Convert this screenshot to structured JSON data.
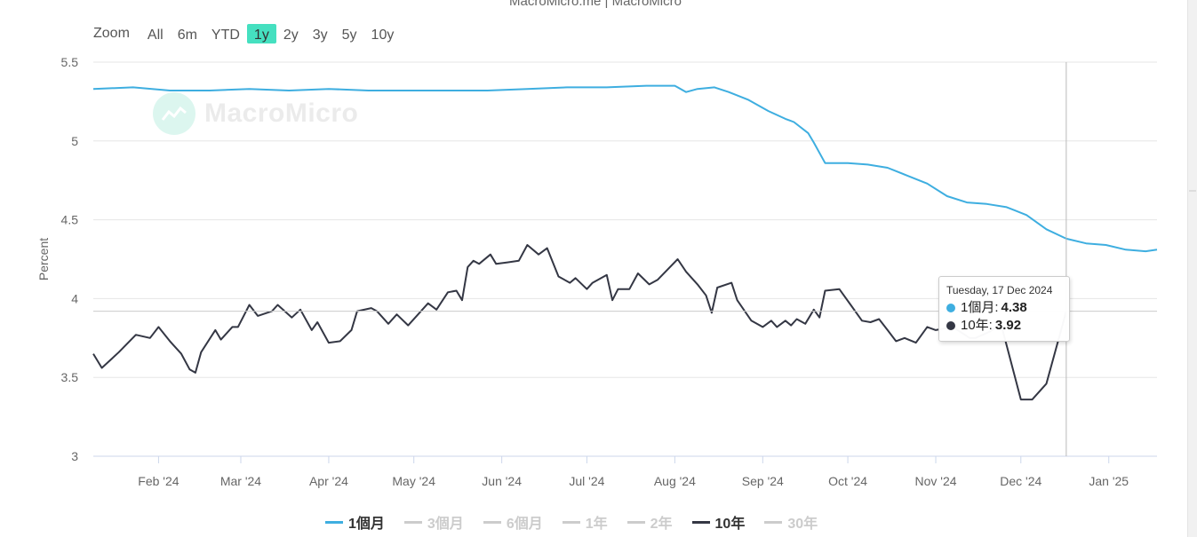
{
  "credit": "MacroMicro.me | MacroMicro",
  "zoom": {
    "label": "Zoom",
    "buttons": [
      "All",
      "6m",
      "YTD",
      "1y",
      "2y",
      "3y",
      "5y",
      "10y"
    ],
    "active": "1y"
  },
  "watermark": "MacroMicro",
  "colors": {
    "series_1m": "#3eaee0",
    "series_10y": "#343744",
    "active_button": "#45e0c0"
  },
  "tooltip": {
    "date": "Tuesday, 17 Dec 2024",
    "rows": [
      {
        "label": "1個月:",
        "value": "4.38",
        "color": "#3eaee0"
      },
      {
        "label": "10年:",
        "value": "3.92",
        "color": "#343744"
      }
    ]
  },
  "legend": [
    {
      "label": "1個月",
      "color": "#3eaee0",
      "active": true
    },
    {
      "label": "3個月",
      "color": "#cccccc",
      "active": false
    },
    {
      "label": "6個月",
      "color": "#cccccc",
      "active": false
    },
    {
      "label": "1年",
      "color": "#cccccc",
      "active": false
    },
    {
      "label": "2年",
      "color": "#cccccc",
      "active": false
    },
    {
      "label": "10年",
      "color": "#343744",
      "active": true
    },
    {
      "label": "30年",
      "color": "#cccccc",
      "active": false
    }
  ],
  "chart_data": {
    "type": "line",
    "ylabel": "Percent",
    "ylim": [
      3,
      5.5
    ],
    "yticks": [
      "3",
      "3.5",
      "4",
      "4.5",
      "5",
      "5.5"
    ],
    "xlim": [
      "2024-01-09",
      "2025-01-18"
    ],
    "xticks": [
      {
        "label": "Feb '24",
        "date": "2024-02-01"
      },
      {
        "label": "Mar '24",
        "date": "2024-03-01"
      },
      {
        "label": "Apr '24",
        "date": "2024-04-01"
      },
      {
        "label": "May '24",
        "date": "2024-05-01"
      },
      {
        "label": "Jun '24",
        "date": "2024-06-01"
      },
      {
        "label": "Jul '24",
        "date": "2024-07-01"
      },
      {
        "label": "Aug '24",
        "date": "2024-08-01"
      },
      {
        "label": "Sep '24",
        "date": "2024-09-01"
      },
      {
        "label": "Oct '24",
        "date": "2024-10-01"
      },
      {
        "label": "Nov '24",
        "date": "2024-11-01"
      },
      {
        "label": "Dec '24",
        "date": "2024-12-01"
      },
      {
        "label": "Jan '25",
        "date": "2025-01-01"
      }
    ],
    "crosshair_date": "2024-12-17",
    "series": [
      {
        "name": "1個月",
        "color": "#3eaee0",
        "points": [
          [
            "2024-01-09",
            5.33
          ],
          [
            "2024-01-23",
            5.34
          ],
          [
            "2024-02-05",
            5.32
          ],
          [
            "2024-02-19",
            5.32
          ],
          [
            "2024-03-04",
            5.33
          ],
          [
            "2024-03-18",
            5.32
          ],
          [
            "2024-04-01",
            5.33
          ],
          [
            "2024-04-15",
            5.32
          ],
          [
            "2024-04-29",
            5.32
          ],
          [
            "2024-05-13",
            5.32
          ],
          [
            "2024-05-27",
            5.32
          ],
          [
            "2024-06-10",
            5.33
          ],
          [
            "2024-06-24",
            5.34
          ],
          [
            "2024-07-08",
            5.34
          ],
          [
            "2024-07-22",
            5.35
          ],
          [
            "2024-08-01",
            5.35
          ],
          [
            "2024-08-05",
            5.31
          ],
          [
            "2024-08-09",
            5.33
          ],
          [
            "2024-08-15",
            5.34
          ],
          [
            "2024-08-20",
            5.31
          ],
          [
            "2024-08-27",
            5.26
          ],
          [
            "2024-09-03",
            5.19
          ],
          [
            "2024-09-09",
            5.14
          ],
          [
            "2024-09-12",
            5.12
          ],
          [
            "2024-09-17",
            5.05
          ],
          [
            "2024-09-19",
            4.99
          ],
          [
            "2024-09-23",
            4.86
          ],
          [
            "2024-10-01",
            4.86
          ],
          [
            "2024-10-08",
            4.85
          ],
          [
            "2024-10-15",
            4.83
          ],
          [
            "2024-10-22",
            4.78
          ],
          [
            "2024-10-29",
            4.73
          ],
          [
            "2024-11-05",
            4.65
          ],
          [
            "2024-11-12",
            4.61
          ],
          [
            "2024-11-19",
            4.6
          ],
          [
            "2024-11-26",
            4.58
          ],
          [
            "2024-12-03",
            4.53
          ],
          [
            "2024-12-10",
            4.44
          ],
          [
            "2024-12-17",
            4.38
          ],
          [
            "2024-12-24",
            4.35
          ],
          [
            "2024-12-31",
            4.34
          ],
          [
            "2025-01-07",
            4.31
          ],
          [
            "2025-01-14",
            4.3
          ],
          [
            "2025-01-18",
            4.31
          ]
        ]
      },
      {
        "name": "10年",
        "color": "#343744",
        "points": [
          [
            "2024-01-09",
            3.65
          ],
          [
            "2024-01-12",
            3.56
          ],
          [
            "2024-01-18",
            3.66
          ],
          [
            "2024-01-24",
            3.77
          ],
          [
            "2024-01-29",
            3.75
          ],
          [
            "2024-02-01",
            3.82
          ],
          [
            "2024-02-05",
            3.73
          ],
          [
            "2024-02-09",
            3.65
          ],
          [
            "2024-02-12",
            3.55
          ],
          [
            "2024-02-14",
            3.53
          ],
          [
            "2024-02-16",
            3.66
          ],
          [
            "2024-02-21",
            3.8
          ],
          [
            "2024-02-23",
            3.74
          ],
          [
            "2024-02-27",
            3.82
          ],
          [
            "2024-02-29",
            3.82
          ],
          [
            "2024-03-04",
            3.96
          ],
          [
            "2024-03-07",
            3.89
          ],
          [
            "2024-03-12",
            3.92
          ],
          [
            "2024-03-14",
            3.96
          ],
          [
            "2024-03-19",
            3.88
          ],
          [
            "2024-03-22",
            3.93
          ],
          [
            "2024-03-26",
            3.8
          ],
          [
            "2024-03-28",
            3.85
          ],
          [
            "2024-04-01",
            3.72
          ],
          [
            "2024-04-05",
            3.73
          ],
          [
            "2024-04-09",
            3.8
          ],
          [
            "2024-04-11",
            3.92
          ],
          [
            "2024-04-16",
            3.94
          ],
          [
            "2024-04-18",
            3.92
          ],
          [
            "2024-04-22",
            3.84
          ],
          [
            "2024-04-25",
            3.9
          ],
          [
            "2024-04-29",
            3.83
          ],
          [
            "2024-05-02",
            3.89
          ],
          [
            "2024-05-06",
            3.97
          ],
          [
            "2024-05-09",
            3.93
          ],
          [
            "2024-05-13",
            4.04
          ],
          [
            "2024-05-16",
            4.05
          ],
          [
            "2024-05-18",
            3.99
          ],
          [
            "2024-05-20",
            4.2
          ],
          [
            "2024-05-22",
            4.24
          ],
          [
            "2024-05-24",
            4.22
          ],
          [
            "2024-05-28",
            4.28
          ],
          [
            "2024-05-30",
            4.22
          ],
          [
            "2024-06-03",
            4.23
          ],
          [
            "2024-06-07",
            4.24
          ],
          [
            "2024-06-10",
            4.34
          ],
          [
            "2024-06-14",
            4.28
          ],
          [
            "2024-06-17",
            4.32
          ],
          [
            "2024-06-21",
            4.14
          ],
          [
            "2024-06-25",
            4.1
          ],
          [
            "2024-06-27",
            4.13
          ],
          [
            "2024-07-01",
            4.06
          ],
          [
            "2024-07-03",
            4.1
          ],
          [
            "2024-07-08",
            4.15
          ],
          [
            "2024-07-10",
            3.99
          ],
          [
            "2024-07-12",
            4.06
          ],
          [
            "2024-07-16",
            4.06
          ],
          [
            "2024-07-19",
            4.16
          ],
          [
            "2024-07-23",
            4.09
          ],
          [
            "2024-07-26",
            4.12
          ],
          [
            "2024-08-02",
            4.25
          ],
          [
            "2024-08-05",
            4.17
          ],
          [
            "2024-08-09",
            4.09
          ],
          [
            "2024-08-12",
            4.02
          ],
          [
            "2024-08-14",
            3.91
          ],
          [
            "2024-08-16",
            4.07
          ],
          [
            "2024-08-21",
            4.1
          ],
          [
            "2024-08-23",
            3.99
          ],
          [
            "2024-08-28",
            3.86
          ],
          [
            "2024-09-01",
            3.82
          ],
          [
            "2024-09-04",
            3.86
          ],
          [
            "2024-09-06",
            3.82
          ],
          [
            "2024-09-09",
            3.86
          ],
          [
            "2024-09-11",
            3.83
          ],
          [
            "2024-09-13",
            3.87
          ],
          [
            "2024-09-16",
            3.84
          ],
          [
            "2024-09-19",
            3.93
          ],
          [
            "2024-09-21",
            3.88
          ],
          [
            "2024-09-23",
            4.05
          ],
          [
            "2024-09-28",
            4.06
          ],
          [
            "2024-10-02",
            3.96
          ],
          [
            "2024-10-06",
            3.86
          ],
          [
            "2024-10-09",
            3.85
          ],
          [
            "2024-10-12",
            3.87
          ],
          [
            "2024-10-15",
            3.8
          ],
          [
            "2024-10-18",
            3.73
          ],
          [
            "2024-10-21",
            3.75
          ],
          [
            "2024-10-25",
            3.72
          ],
          [
            "2024-10-29",
            3.82
          ],
          [
            "2024-11-01",
            3.8
          ],
          [
            "2024-11-04",
            3.81
          ],
          [
            "2024-11-07",
            3.82
          ],
          [
            "2024-11-13",
            3.75
          ],
          [
            "2024-11-15",
            3.75
          ],
          [
            "2024-11-20",
            3.79
          ],
          [
            "2024-11-24",
            3.84
          ],
          [
            "2024-12-01",
            3.36
          ],
          [
            "2024-12-05",
            3.36
          ],
          [
            "2024-12-10",
            3.46
          ],
          [
            "2024-12-17",
            3.92
          ]
        ]
      }
    ]
  }
}
